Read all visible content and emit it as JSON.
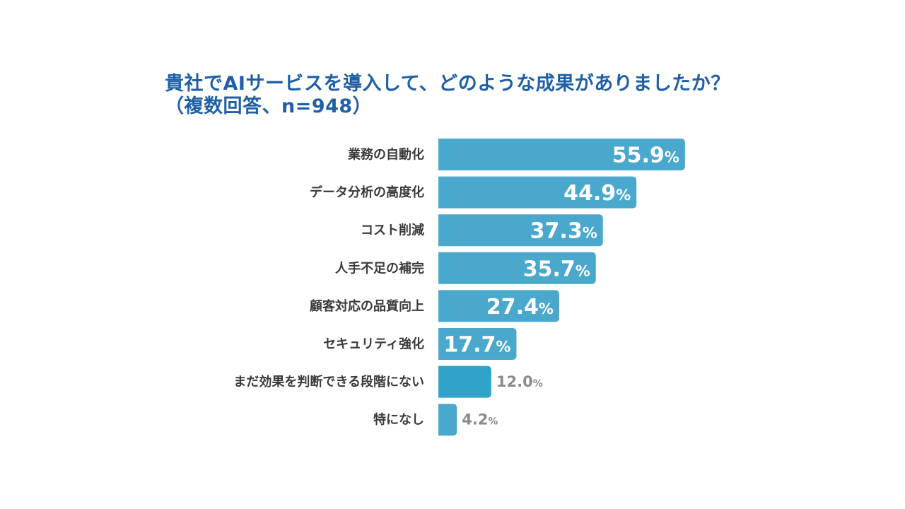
{
  "title": {
    "line1": "貴社でAIサービスを導入して、どのような成果がありましたか？",
    "line2": "（複数回答、n=948）"
  },
  "colors": {
    "bar": "#4aa8cc",
    "bar_highlight": "#31a3c9",
    "title": "#1f5fa6",
    "label": "#3a3a3a",
    "value_outside": "#8a8a8a"
  },
  "chart_data": {
    "type": "bar",
    "orientation": "horizontal",
    "title": "貴社でAIサービスを導入して、どのような成果がありましたか？（複数回答、n=948）",
    "categories": [
      "業務の自動化",
      "データ分析の高度化",
      "コスト削減",
      "人手不足の補完",
      "顧客対応の品質向上",
      "セキュリティ強化",
      "まだ効果を判断できる段階にない",
      "特になし"
    ],
    "values": [
      55.9,
      44.9,
      37.3,
      35.7,
      27.4,
      17.7,
      12.0,
      4.2
    ],
    "unit": "%",
    "xlabel": "",
    "ylabel": "",
    "grid": false,
    "legend": "none"
  }
}
